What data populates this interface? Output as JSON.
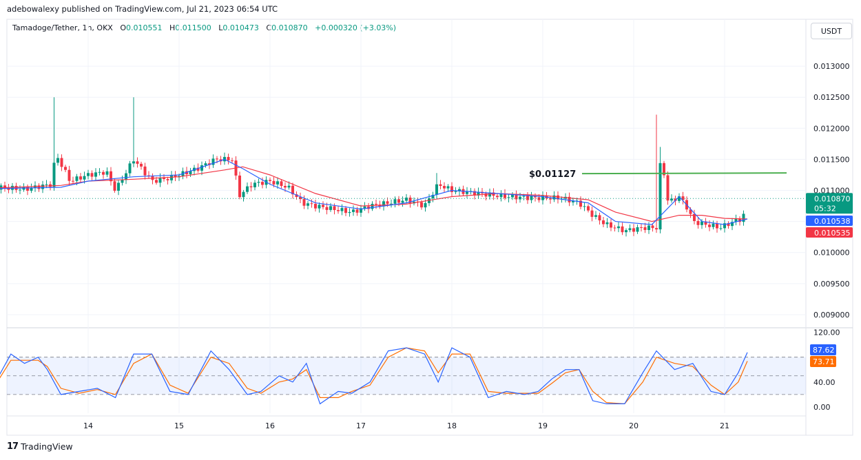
{
  "header": {
    "published": "adebowalexy published on TradingView.com, Jul 21, 2023 06:54 UTC",
    "symbol": "Tamadoge/Tether, 1h, OKX",
    "o_label": "O",
    "o_value": "0.010551",
    "h_label": "H",
    "h_value": "0.011500",
    "l_label": "L",
    "l_value": "0.010473",
    "c_label": "C",
    "c_value": "0.010870",
    "change": "+0.000320 (+3.03%)"
  },
  "currency_button": "USDT",
  "footer": {
    "brand": "TradingView",
    "brand_mark": "17"
  },
  "colors": {
    "up": "#089981",
    "down": "#f23645",
    "ma_fast": "#2962ff",
    "ma_slow": "#f23645",
    "stoch_k": "#2962ff",
    "stoch_d": "#ff6d00",
    "annotation": "#4caf50"
  },
  "chart_data": [
    {
      "type": "candlestick",
      "title": "Tamadoge/Tether, 1h, OKX",
      "x_ticks": [
        "14",
        "15",
        "16",
        "17",
        "18",
        "19",
        "20",
        "21"
      ],
      "y_ticks": [
        "0.013000",
        "0.012500",
        "0.012000",
        "0.011500",
        "0.011000",
        "0.010500",
        "0.010000",
        "0.009500",
        "0.009000"
      ],
      "ylim": [
        0.0088,
        0.0134
      ],
      "price_labels": [
        {
          "value": 0.01087,
          "text": "0.010870",
          "sub": "05:32",
          "color": "#089981"
        },
        {
          "value": 0.010538,
          "text": "0.010538",
          "color": "#2962ff"
        },
        {
          "value": 0.010535,
          "text": "0.010535",
          "color": "#f23645"
        }
      ],
      "annotation": {
        "text": "$0.01127",
        "value": 0.01127
      },
      "series": [
        {
          "name": "price",
          "x": [
            13.0,
            13.3,
            13.6,
            13.64,
            13.8,
            14.0,
            14.2,
            14.3,
            14.5,
            14.7,
            14.9,
            15.0,
            15.2,
            15.4,
            15.6,
            15.65,
            15.8,
            16.0,
            16.2,
            16.35,
            16.5,
            16.7,
            16.9,
            17.1,
            17.3,
            17.5,
            17.7,
            17.85,
            18.0,
            18.3,
            18.6,
            18.9,
            19.2,
            19.4,
            19.55,
            19.7,
            19.9,
            20.1,
            20.25,
            20.3,
            20.38,
            20.5,
            20.6,
            20.65,
            20.8,
            20.95,
            21.1,
            21.2,
            21.25
          ],
          "y": [
            0.01105,
            0.01102,
            0.0111,
            0.0116,
            0.01115,
            0.01125,
            0.0113,
            0.011,
            0.0115,
            0.01115,
            0.0112,
            0.01125,
            0.01135,
            0.0115,
            0.0115,
            0.0109,
            0.0111,
            0.01115,
            0.01105,
            0.0108,
            0.01075,
            0.0107,
            0.01065,
            0.01075,
            0.0108,
            0.01085,
            0.01075,
            0.0111,
            0.011,
            0.01095,
            0.0109,
            0.01088,
            0.01088,
            0.0108,
            0.0106,
            0.01045,
            0.01035,
            0.0104,
            0.0104,
            0.0116,
            0.0108,
            0.0109,
            0.0107,
            0.0105,
            0.01045,
            0.0104,
            0.0105,
            0.01055,
            0.01087
          ]
        },
        {
          "name": "MA fast",
          "x": [
            13.0,
            13.7,
            14.0,
            14.5,
            15.0,
            15.5,
            15.7,
            16.0,
            16.5,
            17.0,
            17.5,
            18.0,
            18.5,
            19.0,
            19.5,
            19.8,
            20.2,
            20.5,
            20.75,
            21.0,
            21.25
          ],
          "y": [
            0.01103,
            0.01105,
            0.01115,
            0.01122,
            0.01125,
            0.0115,
            0.01135,
            0.0111,
            0.0108,
            0.0107,
            0.0108,
            0.011,
            0.01095,
            0.0109,
            0.0108,
            0.0105,
            0.01045,
            0.0109,
            0.0105,
            0.01045,
            0.01054
          ]
        },
        {
          "name": "MA slow",
          "x": [
            13.0,
            13.7,
            14.0,
            14.5,
            15.0,
            15.5,
            15.7,
            16.0,
            16.5,
            17.0,
            17.5,
            18.0,
            18.5,
            19.0,
            19.5,
            19.8,
            20.2,
            20.5,
            20.75,
            21.0,
            21.25
          ],
          "y": [
            0.01104,
            0.01108,
            0.01115,
            0.01118,
            0.01122,
            0.01133,
            0.01138,
            0.01125,
            0.01095,
            0.01075,
            0.01078,
            0.0109,
            0.01095,
            0.01092,
            0.01085,
            0.01065,
            0.0105,
            0.0106,
            0.0106,
            0.01055,
            0.01054
          ]
        }
      ]
    },
    {
      "type": "line",
      "title": "Stochastic RSI",
      "y_ticks": [
        "120.00",
        "40.00",
        "0.00"
      ],
      "ylim": [
        -10,
        125
      ],
      "bands": [
        80,
        50,
        20
      ],
      "value_labels": [
        {
          "text": "87.62",
          "value": 87.62,
          "color": "#2962ff"
        },
        {
          "text": "73.71",
          "value": 73.71,
          "color": "#ff6d00"
        }
      ],
      "series": [
        {
          "name": "K",
          "x": [
            13.0,
            13.15,
            13.3,
            13.45,
            13.55,
            13.7,
            13.9,
            14.1,
            14.3,
            14.5,
            14.7,
            14.9,
            15.1,
            15.35,
            15.55,
            15.75,
            15.9,
            16.1,
            16.25,
            16.4,
            16.55,
            16.75,
            16.9,
            17.1,
            17.3,
            17.5,
            17.7,
            17.85,
            18.0,
            18.2,
            18.4,
            18.6,
            18.8,
            18.95,
            19.1,
            19.25,
            19.4,
            19.55,
            19.7,
            19.9,
            20.1,
            20.25,
            20.45,
            20.65,
            20.85,
            21.0,
            21.15,
            21.25
          ],
          "y": [
            45,
            85,
            70,
            80,
            60,
            20,
            25,
            30,
            15,
            85,
            85,
            25,
            20,
            90,
            60,
            20,
            25,
            50,
            40,
            70,
            5,
            25,
            22,
            40,
            90,
            95,
            85,
            40,
            95,
            80,
            15,
            25,
            20,
            25,
            45,
            60,
            60,
            10,
            5,
            5,
            55,
            90,
            60,
            70,
            25,
            20,
            55,
            87.62
          ]
        },
        {
          "name": "D",
          "x": [
            13.0,
            13.15,
            13.3,
            13.45,
            13.55,
            13.7,
            13.9,
            14.1,
            14.3,
            14.5,
            14.7,
            14.9,
            15.1,
            15.35,
            15.55,
            15.75,
            15.9,
            16.1,
            16.25,
            16.4,
            16.55,
            16.75,
            16.9,
            17.1,
            17.3,
            17.5,
            17.7,
            17.85,
            18.0,
            18.2,
            18.4,
            18.6,
            18.8,
            18.95,
            19.1,
            19.25,
            19.4,
            19.55,
            19.7,
            19.9,
            20.1,
            20.25,
            20.45,
            20.65,
            20.85,
            21.0,
            21.15,
            21.25
          ],
          "y": [
            40,
            75,
            75,
            75,
            65,
            30,
            22,
            28,
            20,
            70,
            85,
            35,
            22,
            80,
            70,
            30,
            22,
            40,
            45,
            60,
            15,
            15,
            25,
            35,
            80,
            95,
            90,
            55,
            85,
            85,
            25,
            22,
            22,
            22,
            38,
            55,
            60,
            25,
            7,
            5,
            40,
            80,
            70,
            65,
            35,
            20,
            40,
            73.71
          ]
        }
      ]
    }
  ]
}
